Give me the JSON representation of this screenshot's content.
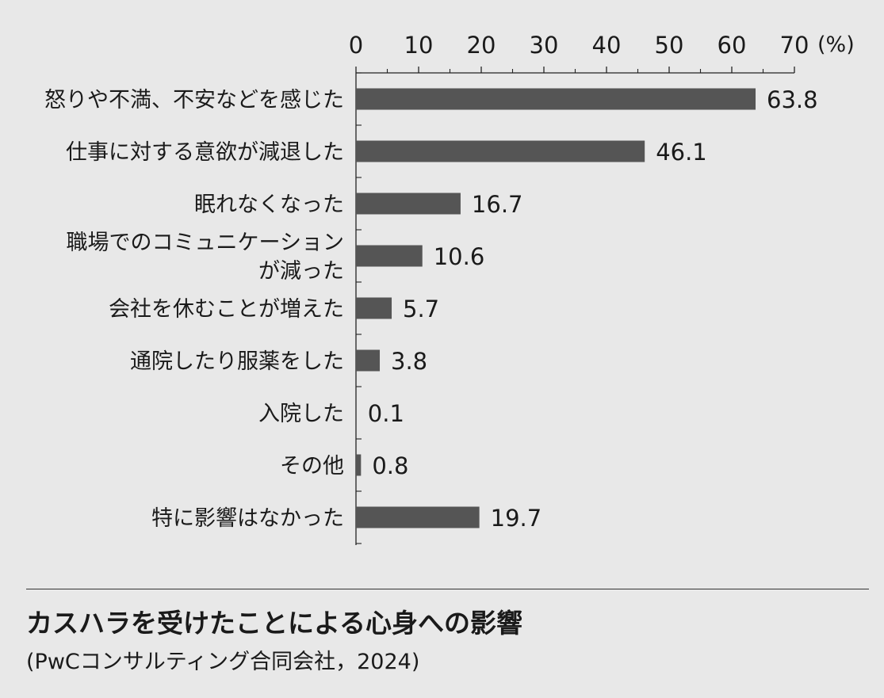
{
  "chart_data": {
    "type": "bar",
    "orientation": "horizontal",
    "unit_label": "(%)",
    "xlim": [
      0,
      70
    ],
    "x_ticks": [
      "0",
      "10",
      "20",
      "30",
      "40",
      "50",
      "60",
      "70"
    ],
    "categories": [
      [
        "怒りや不満、不安などを感じた"
      ],
      [
        "仕事に対する意欲が減退した"
      ],
      [
        "眠れなくなった"
      ],
      [
        "職場でのコミュニケーション",
        "が減った"
      ],
      [
        "会社を休むことが増えた"
      ],
      [
        "通院したり服薬をした"
      ],
      [
        "入院した"
      ],
      [
        "その他"
      ],
      [
        "特に影響はなかった"
      ]
    ],
    "values": [
      63.8,
      46.1,
      16.7,
      10.6,
      5.7,
      3.8,
      0.1,
      0.8,
      19.7
    ],
    "value_labels": [
      "63.8",
      "46.1",
      "16.7",
      "10.6",
      "5.7",
      "3.8",
      "0.1",
      "0.8",
      "19.7"
    ],
    "bar_color": "#555555",
    "grid": false
  },
  "caption": {
    "title": "カスハラを受けたことによる心身への影響",
    "source": "(PwCコンサルティング合同会社，2024)"
  }
}
